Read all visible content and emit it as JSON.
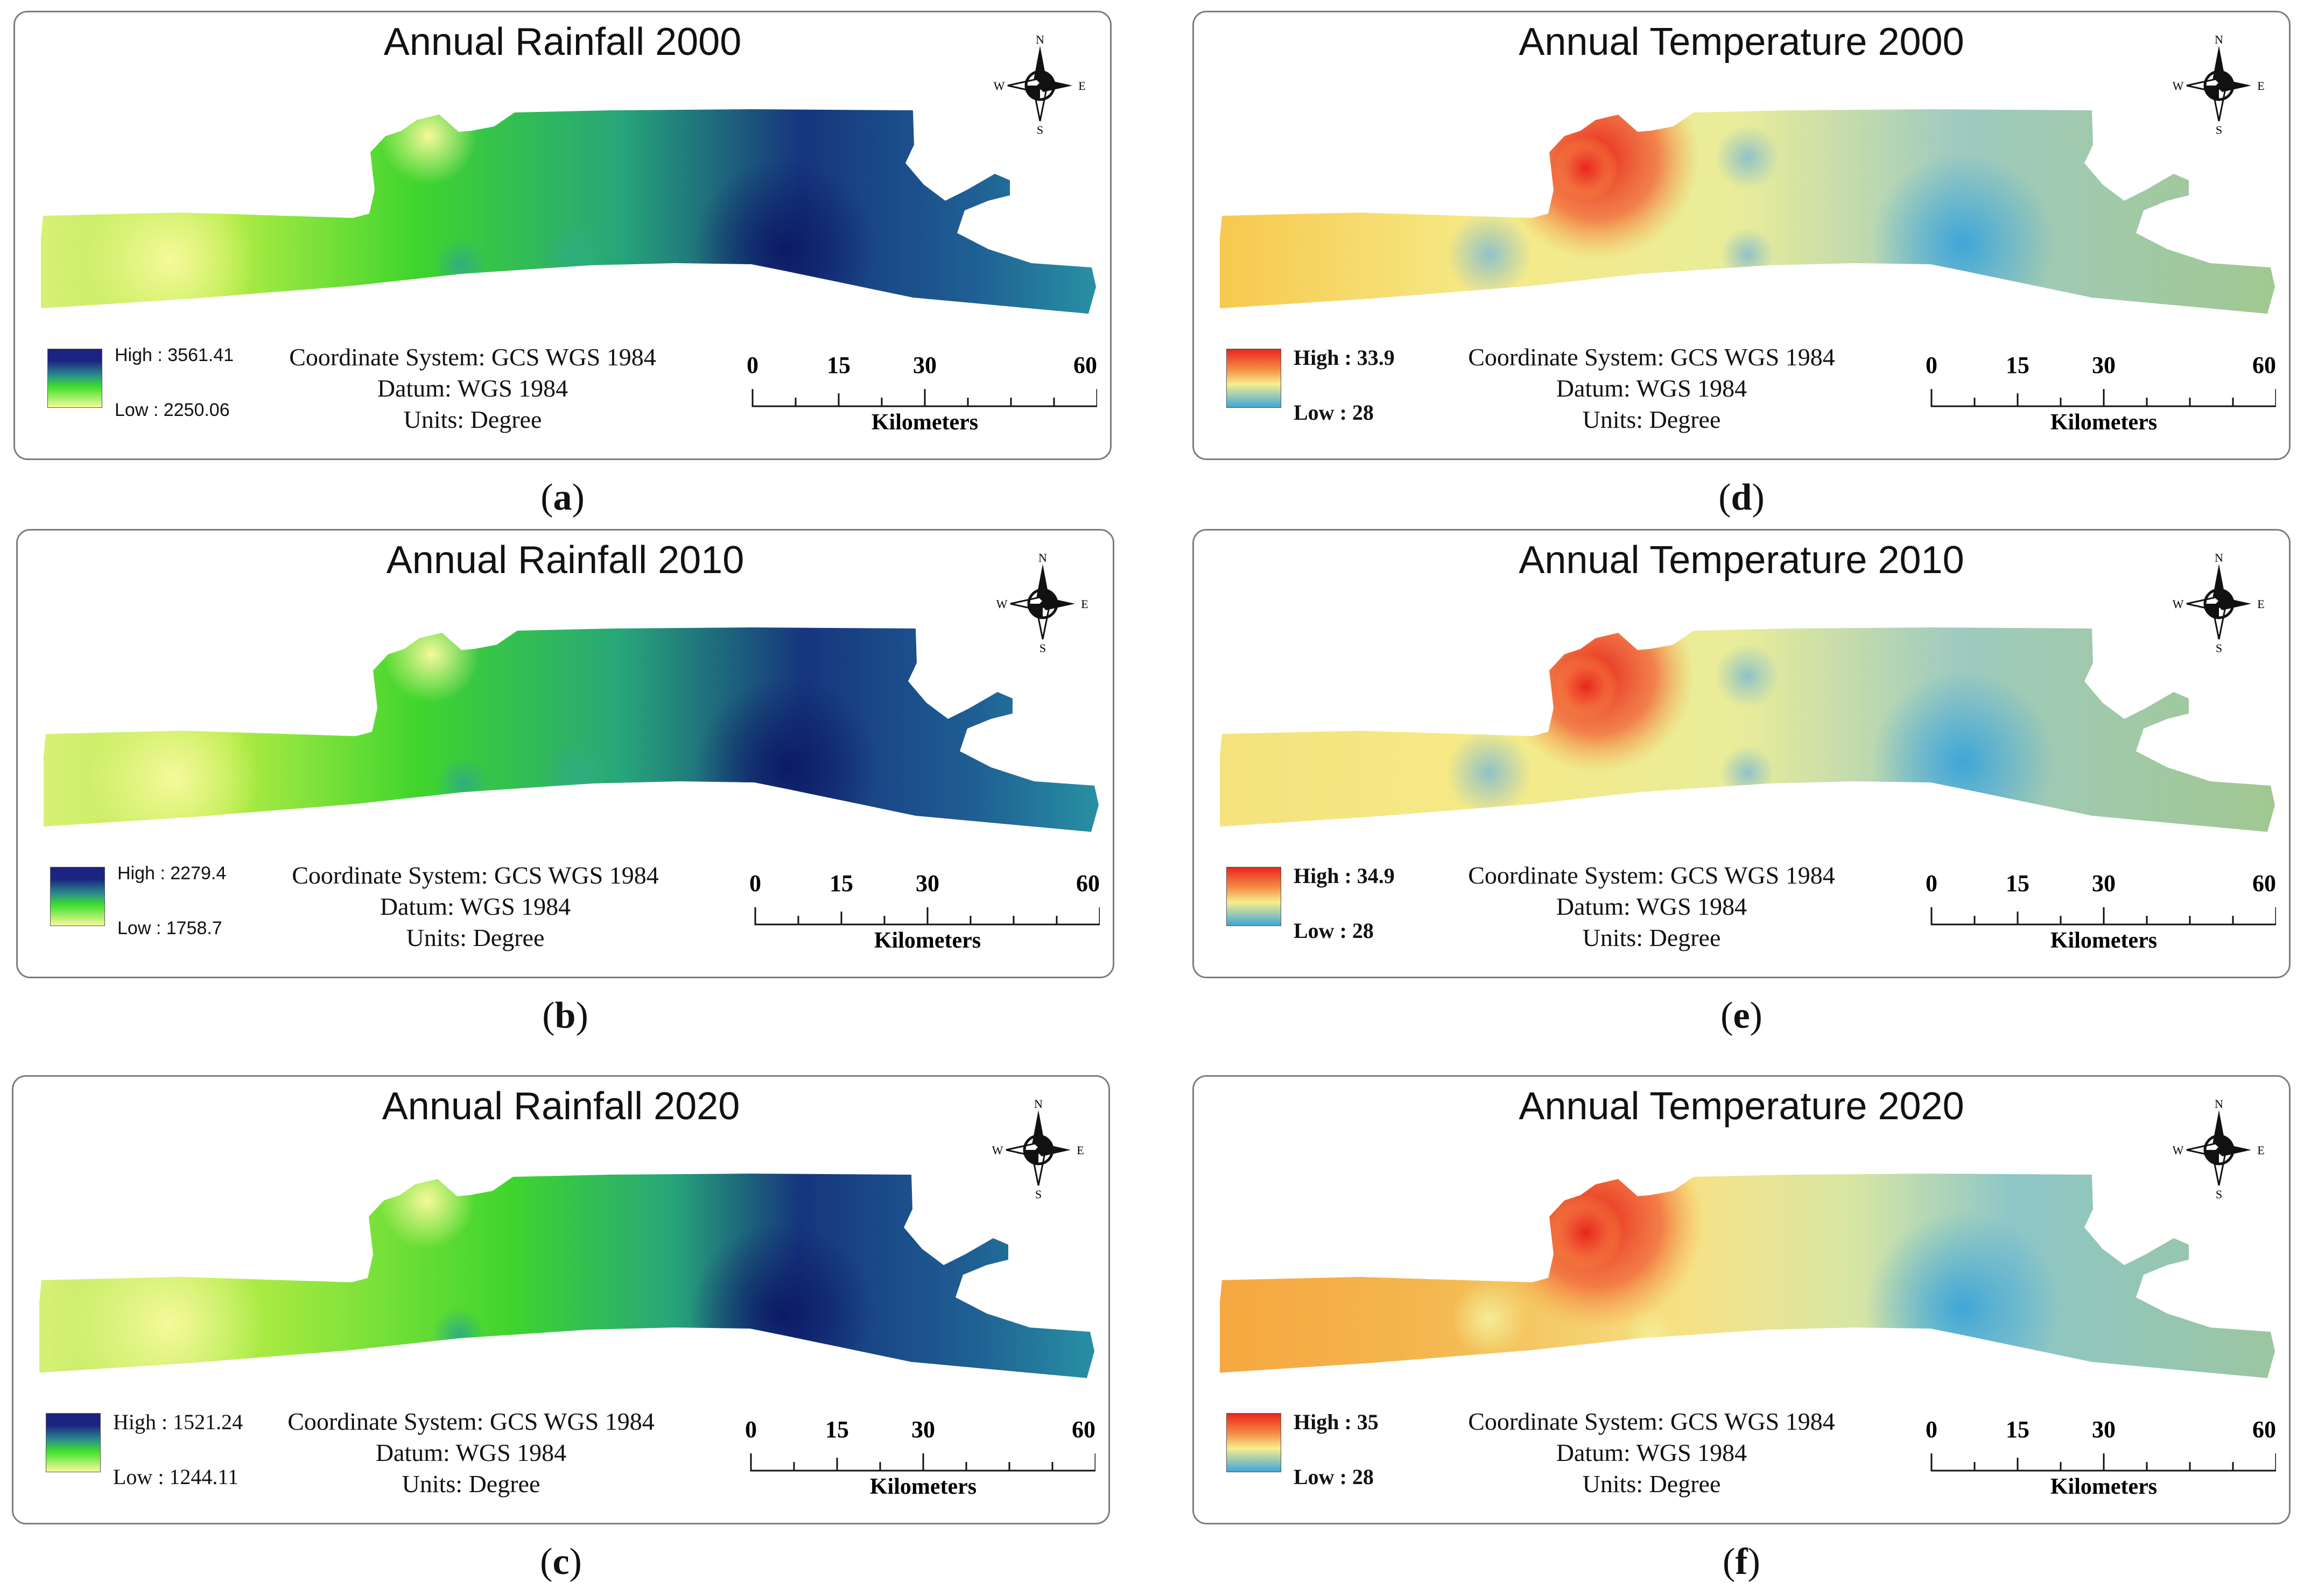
{
  "panels": [
    {
      "id": "a",
      "title": "Annual Rainfall 2000",
      "type": "rain",
      "high": "High : 3561.41",
      "low": "Low : 2250.06",
      "caption_letter": "a"
    },
    {
      "id": "b",
      "title": "Annual Rainfall 2010",
      "type": "rain",
      "high": "High : 2279.4",
      "low": "Low : 1758.7",
      "caption_letter": "b"
    },
    {
      "id": "c",
      "title": "Annual Rainfall 2020",
      "type": "rain",
      "high": "High : 1521.24",
      "low": "Low : 1244.11",
      "caption_letter": "c"
    },
    {
      "id": "d",
      "title": "Annual Temperature 2000",
      "type": "temp",
      "high": "High : 33.9",
      "low": "Low : 28",
      "caption_letter": "d"
    },
    {
      "id": "e",
      "title": "Annual Temperature 2010",
      "type": "temp",
      "high": "High : 34.9",
      "low": "Low : 28",
      "caption_letter": "e"
    },
    {
      "id": "f",
      "title": "Annual Temperature 2020",
      "type": "temp",
      "high": "High : 35",
      "low": "Low : 28",
      "caption_letter": "f"
    }
  ],
  "coordinate_system": "Coordinate System: GCS WGS 1984",
  "datum": "Datum: WGS 1984",
  "units": "Units: Degree",
  "scale": {
    "ticks": [
      "0",
      "15",
      "30",
      "60"
    ],
    "unit": "Kilometers"
  },
  "compass": {
    "n": "N",
    "s": "S",
    "e": "E",
    "w": "W"
  },
  "colors": {
    "rain_high": "#1a237e",
    "rain_mid": "#3ddc2c",
    "rain_low": "#f4f89a",
    "temp_high": "#e8261c",
    "temp_mid": "#f6ee8e",
    "temp_low": "#3fa6d8"
  }
}
